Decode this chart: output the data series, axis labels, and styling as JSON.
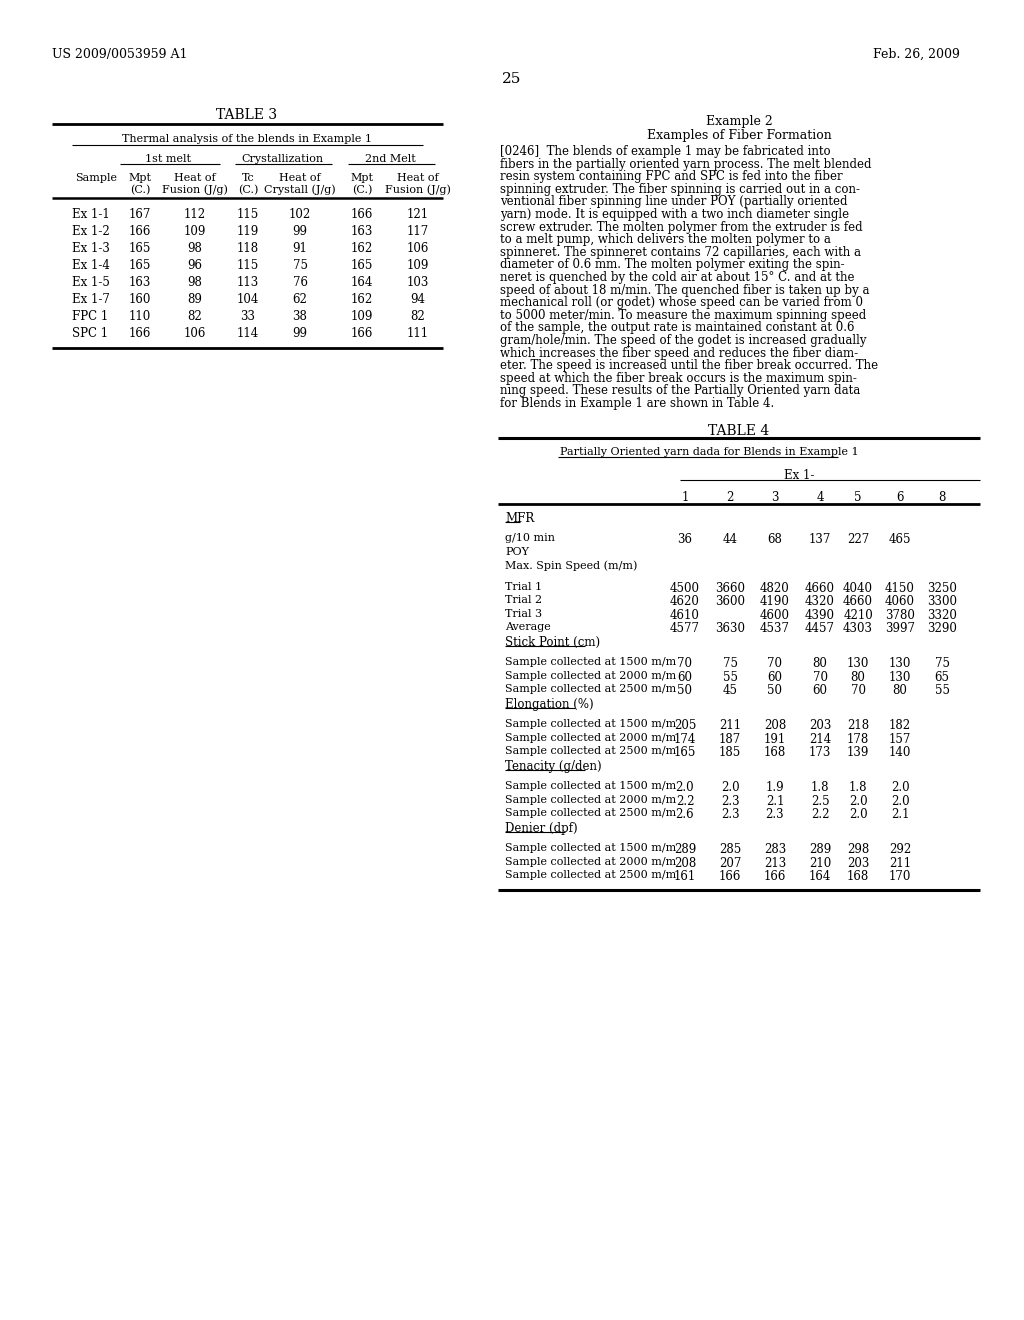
{
  "bg_color": "#ffffff",
  "text_color": "#000000",
  "header_left": "US 2009/0053959 A1",
  "header_right": "Feb. 26, 2009",
  "page_number": "25",
  "table3_title": "TABLE 3",
  "table3_subtitle": "Thermal analysis of the blends in Example 1",
  "table3_rows": [
    [
      "Ex 1-1",
      "167",
      "112",
      "115",
      "102",
      "166",
      "121"
    ],
    [
      "Ex 1-2",
      "166",
      "109",
      "119",
      "99",
      "163",
      "117"
    ],
    [
      "Ex 1-3",
      "165",
      "98",
      "118",
      "91",
      "162",
      "106"
    ],
    [
      "Ex 1-4",
      "165",
      "96",
      "115",
      "75",
      "165",
      "109"
    ],
    [
      "Ex 1-5",
      "163",
      "98",
      "113",
      "76",
      "164",
      "103"
    ],
    [
      "Ex 1-7",
      "160",
      "89",
      "104",
      "62",
      "162",
      "94"
    ],
    [
      "FPC 1",
      "110",
      "82",
      "33",
      "38",
      "109",
      "82"
    ],
    [
      "SPC 1",
      "166",
      "106",
      "114",
      "99",
      "166",
      "111"
    ]
  ],
  "example2_title": "Example 2",
  "example2_subtitle": "Examples of Fiber Formation",
  "example2_paragraph": "[0246]  The blends of example 1 may be fabricated into fibers in the partially oriented yarn process. The melt blended resin system containing FPC and SPC is fed into the fiber spinning extruder. The fiber spinning is carried out in a con-ventional fiber spinning line under POY (partially oriented yarn) mode. It is equipped with a two inch diameter single screw extruder. The molten polymer from the extruder is fed to a melt pump, which delivers the molten polymer to a spinneret. The spinneret contains 72 capillaries, each with a diameter of 0.6 mm. The molten polymer exiting the spin-neret is quenched by the cold air at about 15° C. and at the speed of about 18 m/min. The quenched fiber is taken up by a mechanical roll (or godet) whose speed can be varied from 0 to 5000 meter/min. To measure the maximum spinning speed of the sample, the output rate is maintained constant at 0.6 gram/hole/min. The speed of the godet is increased gradually which increases the fiber speed and reduces the fiber diam-eter. The speed is increased until the fiber break occurred. The speed at which the fiber break occurs is the maximum spin-ning speed. These results of the Partially Oriented yarn data for Blends in Example 1 are shown in Table 4.",
  "table4_title": "TABLE 4",
  "table4_subtitle": "Partially Oriented yarn dada for Blends in Example 1",
  "table4_ex_header": "Ex 1-",
  "table4_col_nums": [
    "1",
    "2",
    "3",
    "4",
    "5",
    "6",
    "8"
  ],
  "table4_data": [
    {
      "type": "section_header",
      "label": "MFR"
    },
    {
      "type": "blank"
    },
    {
      "type": "data",
      "label": "g/10 min",
      "values": [
        "36",
        "44",
        "68",
        "137",
        "227",
        "465",
        ""
      ]
    },
    {
      "type": "plain",
      "label": "POY",
      "values": [
        "",
        "",
        "",
        "",
        "",
        "",
        ""
      ]
    },
    {
      "type": "plain",
      "label": "Max. Spin Speed (m/m)",
      "values": [
        "",
        "",
        "",
        "",
        "",
        "",
        ""
      ]
    },
    {
      "type": "blank"
    },
    {
      "type": "data",
      "label": "Trial 1",
      "values": [
        "4500",
        "3660",
        "4820",
        "4660",
        "4040",
        "4150",
        "3250"
      ]
    },
    {
      "type": "data",
      "label": "Trial 2",
      "values": [
        "4620",
        "3600",
        "4190",
        "4320",
        "4660",
        "4060",
        "3300"
      ]
    },
    {
      "type": "data",
      "label": "Trial 3",
      "values": [
        "4610",
        "",
        "4600",
        "4390",
        "4210",
        "3780",
        "3320"
      ]
    },
    {
      "type": "data",
      "label": "Average",
      "values": [
        "4577",
        "3630",
        "4537",
        "4457",
        "4303",
        "3997",
        "3290"
      ]
    },
    {
      "type": "section_header",
      "label": "Stick Point (cm)"
    },
    {
      "type": "blank"
    },
    {
      "type": "data",
      "label": "Sample collected at 1500 m/m",
      "values": [
        "70",
        "75",
        "70",
        "80",
        "130",
        "130",
        "75"
      ]
    },
    {
      "type": "data",
      "label": "Sample collected at 2000 m/m",
      "values": [
        "60",
        "55",
        "60",
        "70",
        "80",
        "130",
        "65"
      ]
    },
    {
      "type": "data",
      "label": "Sample collected at 2500 m/m",
      "values": [
        "50",
        "45",
        "50",
        "60",
        "70",
        "80",
        "55"
      ]
    },
    {
      "type": "section_header",
      "label": "Elongation (%)"
    },
    {
      "type": "blank"
    },
    {
      "type": "data",
      "label": "Sample collected at 1500 m/m",
      "values": [
        "205",
        "211",
        "208",
        "203",
        "218",
        "182",
        ""
      ]
    },
    {
      "type": "data",
      "label": "Sample collected at 2000 m/m",
      "values": [
        "174",
        "187",
        "191",
        "214",
        "178",
        "157",
        ""
      ]
    },
    {
      "type": "data",
      "label": "Sample collected at 2500 m/m",
      "values": [
        "165",
        "185",
        "168",
        "173",
        "139",
        "140",
        ""
      ]
    },
    {
      "type": "section_header",
      "label": "Tenacity (g/den)"
    },
    {
      "type": "blank"
    },
    {
      "type": "data",
      "label": "Sample collected at 1500 m/m",
      "values": [
        "2.0",
        "2.0",
        "1.9",
        "1.8",
        "1.8",
        "2.0",
        ""
      ]
    },
    {
      "type": "data",
      "label": "Sample collected at 2000 m/m",
      "values": [
        "2.2",
        "2.3",
        "2.1",
        "2.5",
        "2.0",
        "2.0",
        ""
      ]
    },
    {
      "type": "data",
      "label": "Sample collected at 2500 m/m",
      "values": [
        "2.6",
        "2.3",
        "2.3",
        "2.2",
        "2.0",
        "2.1",
        ""
      ]
    },
    {
      "type": "section_header",
      "label": "Denier (dpf)"
    },
    {
      "type": "blank"
    },
    {
      "type": "data",
      "label": "Sample collected at 1500 m/m",
      "values": [
        "289",
        "285",
        "283",
        "289",
        "298",
        "292",
        ""
      ]
    },
    {
      "type": "data",
      "label": "Sample collected at 2000 m/m",
      "values": [
        "208",
        "207",
        "213",
        "210",
        "203",
        "211",
        ""
      ]
    },
    {
      "type": "data",
      "label": "Sample collected at 2500 m/m",
      "values": [
        "161",
        "166",
        "166",
        "164",
        "168",
        "170",
        ""
      ]
    }
  ]
}
